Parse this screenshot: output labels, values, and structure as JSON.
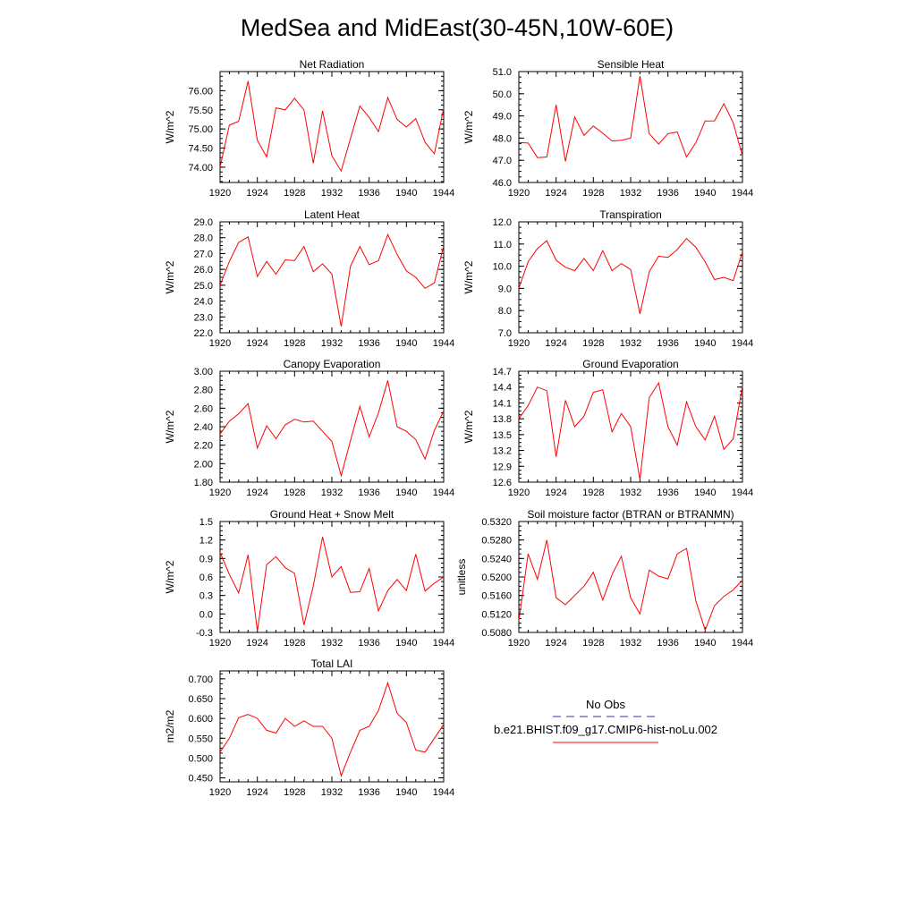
{
  "title": "MedSea and MidEast(30-45N,10W-60E)",
  "x_ticks": [
    "1920",
    "1924",
    "1928",
    "1932",
    "1936",
    "1940",
    "1944"
  ],
  "colors": {
    "model_line": "#ff0000",
    "obs_line": "#3333aa",
    "axis": "#000000"
  },
  "legend": {
    "obs_label": "No Obs",
    "model_label": "b.e21.BHIST.f09_g17.CMIP6-hist-noLu.002"
  },
  "chart_data": [
    {
      "type": "line",
      "title": "Net Radiation",
      "ylabel": "W/m^2",
      "ylim": [
        73.6,
        76.5
      ],
      "yticks": [
        "74.00",
        "74.50",
        "75.00",
        "75.50",
        "76.00"
      ],
      "x": [
        1920,
        1921,
        1922,
        1923,
        1924,
        1925,
        1926,
        1927,
        1928,
        1929,
        1930,
        1931,
        1932,
        1933,
        1934,
        1935,
        1936,
        1937,
        1938,
        1939,
        1940,
        1941,
        1942,
        1943,
        1944
      ],
      "series": [
        {
          "values": [
            74.0,
            75.1,
            75.2,
            76.25,
            74.7,
            74.27,
            75.55,
            75.5,
            75.8,
            75.5,
            74.1,
            75.47,
            74.3,
            73.9,
            74.75,
            75.6,
            75.3,
            74.93,
            75.82,
            75.25,
            75.05,
            75.27,
            74.65,
            74.35,
            75.55
          ]
        }
      ]
    },
    {
      "type": "line",
      "title": "Sensible Heat",
      "ylabel": "W/m^2",
      "ylim": [
        46.0,
        51.0
      ],
      "yticks": [
        "46.0",
        "47.0",
        "48.0",
        "49.0",
        "50.0",
        "51.0"
      ],
      "x": [
        1920,
        1921,
        1922,
        1923,
        1924,
        1925,
        1926,
        1927,
        1928,
        1929,
        1930,
        1931,
        1932,
        1933,
        1934,
        1935,
        1936,
        1937,
        1938,
        1939,
        1940,
        1941,
        1942,
        1943,
        1944
      ],
      "series": [
        {
          "values": [
            47.8,
            47.78,
            47.12,
            47.15,
            49.5,
            46.95,
            48.95,
            48.12,
            48.55,
            48.22,
            47.87,
            47.9,
            48.0,
            50.8,
            48.2,
            47.73,
            48.2,
            48.28,
            47.15,
            47.8,
            48.77,
            48.78,
            49.55,
            48.7,
            47.2
          ]
        }
      ]
    },
    {
      "type": "line",
      "title": "Latent Heat",
      "ylabel": "W/m^2",
      "ylim": [
        22.0,
        29.0
      ],
      "yticks": [
        "22.0",
        "23.0",
        "24.0",
        "25.0",
        "26.0",
        "27.0",
        "28.0",
        "29.0"
      ],
      "x": [
        1920,
        1921,
        1922,
        1923,
        1924,
        1925,
        1926,
        1927,
        1928,
        1929,
        1930,
        1931,
        1932,
        1933,
        1934,
        1935,
        1936,
        1937,
        1938,
        1939,
        1940,
        1941,
        1942,
        1943,
        1944
      ],
      "series": [
        {
          "values": [
            25.0,
            26.5,
            27.7,
            28.05,
            25.55,
            26.5,
            25.7,
            26.6,
            26.55,
            27.45,
            25.85,
            26.35,
            25.7,
            22.4,
            26.2,
            27.45,
            26.3,
            26.55,
            28.2,
            26.95,
            25.9,
            25.5,
            24.8,
            25.15,
            27.5
          ]
        }
      ]
    },
    {
      "type": "line",
      "title": "Transpiration",
      "ylabel": "W/m^2",
      "ylim": [
        7.0,
        12.0
      ],
      "yticks": [
        "7.0",
        "8.0",
        "9.0",
        "10.0",
        "11.0",
        "12.0"
      ],
      "x": [
        1920,
        1921,
        1922,
        1923,
        1924,
        1925,
        1926,
        1927,
        1928,
        1929,
        1930,
        1931,
        1932,
        1933,
        1934,
        1935,
        1936,
        1937,
        1938,
        1939,
        1940,
        1941,
        1942,
        1943,
        1944
      ],
      "series": [
        {
          "values": [
            9.0,
            10.2,
            10.8,
            11.15,
            10.27,
            9.95,
            9.8,
            10.35,
            9.8,
            10.7,
            9.8,
            10.12,
            9.85,
            7.85,
            9.75,
            10.45,
            10.4,
            10.75,
            11.25,
            10.85,
            10.2,
            9.4,
            9.5,
            9.35,
            10.65
          ]
        }
      ]
    },
    {
      "type": "line",
      "title": "Canopy Evaporation",
      "ylabel": "W/m^2",
      "ylim": [
        1.8,
        3.0
      ],
      "yticks": [
        "1.80",
        "2.00",
        "2.20",
        "2.40",
        "2.60",
        "2.80",
        "3.00"
      ],
      "x": [
        1920,
        1921,
        1922,
        1923,
        1924,
        1925,
        1926,
        1927,
        1928,
        1929,
        1930,
        1931,
        1932,
        1933,
        1934,
        1935,
        1936,
        1937,
        1938,
        1939,
        1940,
        1941,
        1942,
        1943,
        1944
      ],
      "series": [
        {
          "values": [
            2.32,
            2.46,
            2.54,
            2.65,
            2.17,
            2.41,
            2.27,
            2.42,
            2.48,
            2.45,
            2.46,
            2.35,
            2.24,
            1.87,
            2.25,
            2.62,
            2.29,
            2.55,
            2.9,
            2.4,
            2.35,
            2.26,
            2.05,
            2.36,
            2.57
          ]
        }
      ]
    },
    {
      "type": "line",
      "title": "Ground Evaporation",
      "ylabel": "W/m^2",
      "ylim": [
        12.6,
        14.7
      ],
      "yticks": [
        "12.6",
        "12.9",
        "13.2",
        "13.5",
        "13.8",
        "14.1",
        "14.4",
        "14.7"
      ],
      "x": [
        1920,
        1921,
        1922,
        1923,
        1924,
        1925,
        1926,
        1927,
        1928,
        1929,
        1930,
        1931,
        1932,
        1933,
        1934,
        1935,
        1936,
        1937,
        1938,
        1939,
        1940,
        1941,
        1942,
        1943,
        1944
      ],
      "series": [
        {
          "values": [
            13.8,
            14.05,
            14.4,
            14.33,
            13.08,
            14.15,
            13.65,
            13.85,
            14.3,
            14.35,
            13.55,
            13.9,
            13.65,
            12.65,
            14.2,
            14.48,
            13.65,
            13.3,
            14.12,
            13.65,
            13.4,
            13.85,
            13.22,
            13.42,
            14.42
          ]
        }
      ]
    },
    {
      "type": "line",
      "title": "Ground Heat + Snow Melt",
      "ylabel": "W/m^2",
      "ylim": [
        -0.3,
        1.5
      ],
      "yticks": [
        "-0.3",
        "0.0",
        "0.3",
        "0.6",
        "0.9",
        "1.2",
        "1.5"
      ],
      "x": [
        1920,
        1921,
        1922,
        1923,
        1924,
        1925,
        1926,
        1927,
        1928,
        1929,
        1930,
        1931,
        1932,
        1933,
        1934,
        1935,
        1936,
        1937,
        1938,
        1939,
        1940,
        1941,
        1942,
        1943,
        1944
      ],
      "series": [
        {
          "values": [
            1.0,
            0.64,
            0.34,
            0.96,
            -0.28,
            0.8,
            0.93,
            0.75,
            0.66,
            -0.18,
            0.45,
            1.25,
            0.6,
            0.77,
            0.35,
            0.36,
            0.74,
            0.05,
            0.38,
            0.56,
            0.38,
            0.97,
            0.37,
            0.5,
            0.6
          ]
        }
      ]
    },
    {
      "type": "line",
      "title": "Soil moisture factor (BTRAN or BTRANMN)",
      "ylabel": "unitless",
      "ylim": [
        0.508,
        0.532
      ],
      "yticks": [
        "0.5080",
        "0.5120",
        "0.5160",
        "0.5200",
        "0.5240",
        "0.5280",
        "0.5320"
      ],
      "x": [
        1920,
        1921,
        1922,
        1923,
        1924,
        1925,
        1926,
        1927,
        1928,
        1929,
        1930,
        1931,
        1932,
        1933,
        1934,
        1935,
        1936,
        1937,
        1938,
        1939,
        1940,
        1941,
        1942,
        1943,
        1944
      ],
      "series": [
        {
          "values": [
            0.5105,
            0.525,
            0.5195,
            0.528,
            0.5155,
            0.514,
            0.516,
            0.518,
            0.521,
            0.515,
            0.5205,
            0.5245,
            0.5155,
            0.512,
            0.5215,
            0.5202,
            0.5196,
            0.525,
            0.5262,
            0.5148,
            0.5085,
            0.5138,
            0.5158,
            0.5172,
            0.5193
          ]
        }
      ]
    },
    {
      "type": "line",
      "title": "Total LAI",
      "ylabel": "m2/m2",
      "ylim": [
        0.44,
        0.72
      ],
      "yticks": [
        "0.450",
        "0.500",
        "0.550",
        "0.600",
        "0.650",
        "0.700"
      ],
      "x": [
        1920,
        1921,
        1922,
        1923,
        1924,
        1925,
        1926,
        1927,
        1928,
        1929,
        1930,
        1931,
        1932,
        1933,
        1934,
        1935,
        1936,
        1937,
        1938,
        1939,
        1940,
        1941,
        1942,
        1943,
        1944
      ],
      "series": [
        {
          "values": [
            0.515,
            0.55,
            0.602,
            0.61,
            0.6,
            0.57,
            0.563,
            0.6,
            0.58,
            0.594,
            0.58,
            0.58,
            0.55,
            0.455,
            0.515,
            0.57,
            0.58,
            0.62,
            0.69,
            0.613,
            0.59,
            0.52,
            0.515,
            0.55,
            0.585
          ]
        }
      ]
    }
  ]
}
